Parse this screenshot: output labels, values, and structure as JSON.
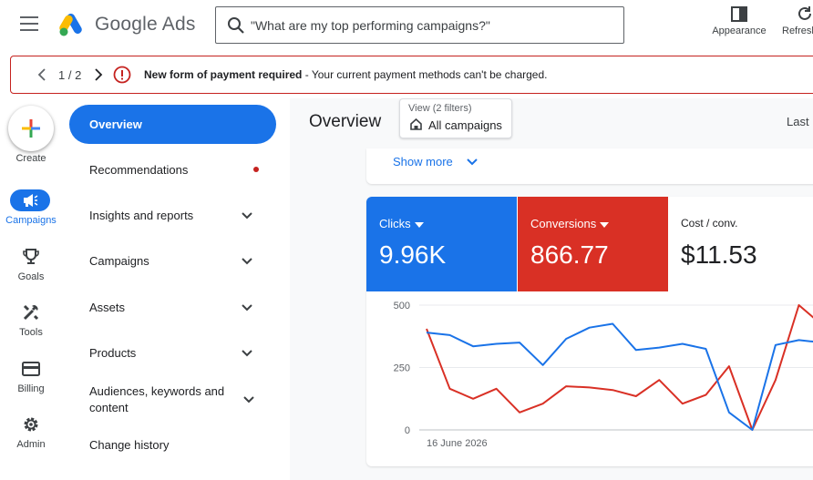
{
  "header": {
    "brand": "Google Ads",
    "search_placeholder": "\"What are my top performing campaigns?\"",
    "appearance_label": "Appearance",
    "refresh_label": "Refresh"
  },
  "alert": {
    "counter": "1 / 2",
    "title": "New form of payment required",
    "message": " - Your current payment methods can't be charged."
  },
  "rail": {
    "create_label": "Create",
    "items": [
      {
        "label": "Campaigns",
        "icon": "megaphone-icon",
        "active": true
      },
      {
        "label": "Goals",
        "icon": "trophy-icon"
      },
      {
        "label": "Tools",
        "icon": "tools-icon"
      },
      {
        "label": "Billing",
        "icon": "card-icon"
      },
      {
        "label": "Admin",
        "icon": "gear-icon"
      }
    ]
  },
  "nav": {
    "overview": "Overview",
    "items": [
      {
        "label": "Recommendations",
        "dot": true
      },
      {
        "label": "Insights and reports",
        "chevron": true
      },
      {
        "label": "Campaigns",
        "chevron": true
      },
      {
        "label": "Assets",
        "chevron": true
      },
      {
        "label": "Products",
        "chevron": true
      },
      {
        "label": "Audiences, keywords and content",
        "chevron": true
      },
      {
        "label": "Change history"
      }
    ]
  },
  "main": {
    "title": "Overview",
    "view_label": "View (2 filters)",
    "view_value": "All campaigns",
    "last_label": "Last",
    "show_more": "Show more"
  },
  "metrics": [
    {
      "name": "Clicks",
      "value": "9.96K",
      "color": "#1a73e8",
      "dropdown": true
    },
    {
      "name": "Conversions",
      "value": "866.77",
      "color": "#d93025",
      "dropdown": true
    },
    {
      "name": "Cost / conv.",
      "value": "$11.53",
      "color": "#ffffff",
      "dropdown": false
    }
  ],
  "chart_data": {
    "type": "line",
    "x_start_label": "16 June 2026",
    "y_ticks": [
      "500",
      "250",
      "0"
    ],
    "ylim": [
      0,
      500
    ],
    "series": [
      {
        "name": "Clicks",
        "color": "#1a73e8",
        "values": [
          390,
          380,
          335,
          345,
          350,
          260,
          365,
          410,
          425,
          320,
          330,
          345,
          325,
          70,
          0,
          340,
          360,
          350
        ]
      },
      {
        "name": "Conversions",
        "color": "#d93025",
        "values": [
          405,
          165,
          125,
          165,
          70,
          105,
          175,
          170,
          160,
          135,
          200,
          105,
          140,
          255,
          0,
          200,
          500,
          420
        ]
      }
    ]
  }
}
